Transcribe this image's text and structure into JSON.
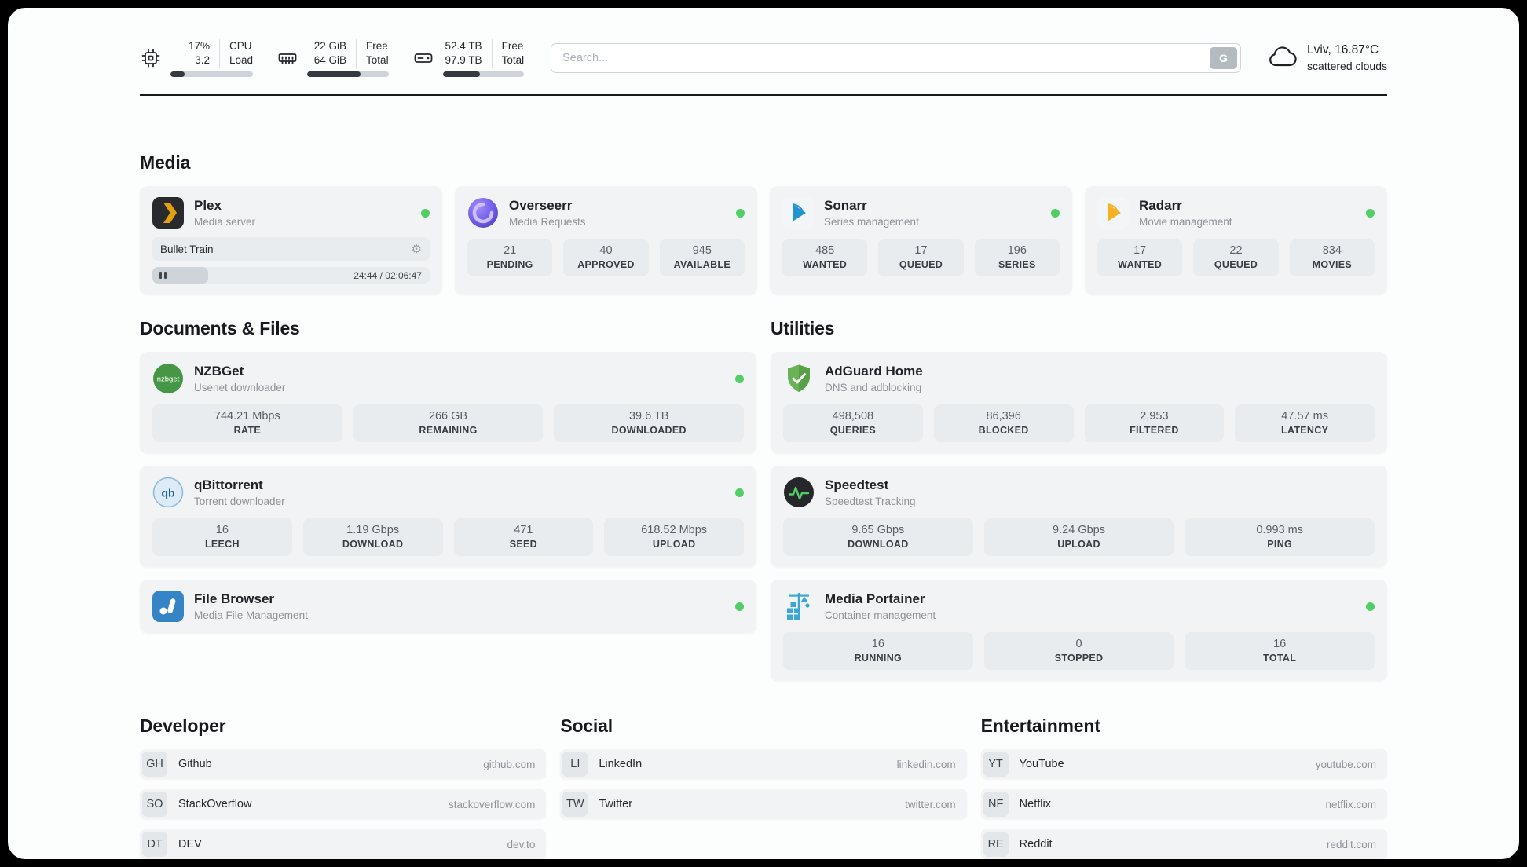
{
  "header": {
    "cpu": {
      "value1": "17%",
      "value2": "3.2",
      "label1": "CPU",
      "label2": "Load",
      "bar_percent": 17
    },
    "ram": {
      "value1": "22 GiB",
      "value2": "64 GiB",
      "label1": "Free",
      "label2": "Total",
      "bar_percent": 66
    },
    "disk": {
      "value1": "52.4 TB",
      "value2": "97.9 TB",
      "label1": "Free",
      "label2": "Total",
      "bar_percent": 46
    },
    "search": {
      "placeholder": "Search...",
      "engine_button": "G"
    },
    "weather": {
      "location": "Lviv, 16.87°C",
      "condition": "scattered clouds"
    }
  },
  "sections": {
    "media": {
      "title": "Media",
      "apps": [
        {
          "name": "Plex",
          "description": "Media server",
          "player": {
            "track": "Bullet Train",
            "time": "24:44 / 02:06:47",
            "progress_percent": 20
          }
        },
        {
          "name": "Overseerr",
          "description": "Media Requests",
          "stats": [
            {
              "value": "21",
              "label": "PENDING"
            },
            {
              "value": "40",
              "label": "APPROVED"
            },
            {
              "value": "945",
              "label": "AVAILABLE"
            }
          ]
        },
        {
          "name": "Sonarr",
          "description": "Series management",
          "stats": [
            {
              "value": "485",
              "label": "WANTED"
            },
            {
              "value": "17",
              "label": "QUEUED"
            },
            {
              "value": "196",
              "label": "SERIES"
            }
          ]
        },
        {
          "name": "Radarr",
          "description": "Movie management",
          "stats": [
            {
              "value": "17",
              "label": "WANTED"
            },
            {
              "value": "22",
              "label": "QUEUED"
            },
            {
              "value": "834",
              "label": "MOVIES"
            }
          ]
        }
      ]
    },
    "documents": {
      "title": "Documents & Files",
      "apps": [
        {
          "name": "NZBGet",
          "description": "Usenet downloader",
          "icon_text": "nzbget",
          "stats": [
            {
              "value": "744.21 Mbps",
              "label": "RATE"
            },
            {
              "value": "266 GB",
              "label": "REMAINING"
            },
            {
              "value": "39.6 TB",
              "label": "DOWNLOADED"
            }
          ]
        },
        {
          "name": "qBittorrent",
          "description": "Torrent downloader",
          "icon_text": "qb",
          "stats": [
            {
              "value": "16",
              "label": "LEECH"
            },
            {
              "value": "1.19 Gbps",
              "label": "DOWNLOAD"
            },
            {
              "value": "471",
              "label": "SEED"
            },
            {
              "value": "618.52 Mbps",
              "label": "UPLOAD"
            }
          ]
        },
        {
          "name": "File Browser",
          "description": "Media File Management"
        }
      ]
    },
    "utilities": {
      "title": "Utilities",
      "apps": [
        {
          "name": "AdGuard Home",
          "description": "DNS and adblocking",
          "stats": [
            {
              "value": "498,508",
              "label": "QUERIES"
            },
            {
              "value": "86,396",
              "label": "BLOCKED"
            },
            {
              "value": "2,953",
              "label": "FILTERED"
            },
            {
              "value": "47.57 ms",
              "label": "LATENCY"
            }
          ]
        },
        {
          "name": "Speedtest",
          "description": "Speedtest Tracking",
          "stats": [
            {
              "value": "9.65 Gbps",
              "label": "DOWNLOAD"
            },
            {
              "value": "9.24 Gbps",
              "label": "UPLOAD"
            },
            {
              "value": "0.993 ms",
              "label": "PING"
            }
          ]
        },
        {
          "name": "Media Portainer",
          "description": "Container management",
          "stats": [
            {
              "value": "16",
              "label": "RUNNING"
            },
            {
              "value": "0",
              "label": "STOPPED"
            },
            {
              "value": "16",
              "label": "TOTAL"
            }
          ]
        }
      ]
    },
    "developer": {
      "title": "Developer",
      "bookmarks": [
        {
          "abbr": "GH",
          "name": "Github",
          "url": "github.com"
        },
        {
          "abbr": "SO",
          "name": "StackOverflow",
          "url": "stackoverflow.com"
        },
        {
          "abbr": "DT",
          "name": "DEV",
          "url": "dev.to"
        }
      ]
    },
    "social": {
      "title": "Social",
      "bookmarks": [
        {
          "abbr": "LI",
          "name": "LinkedIn",
          "url": "linkedin.com"
        },
        {
          "abbr": "TW",
          "name": "Twitter",
          "url": "twitter.com"
        }
      ]
    },
    "entertainment": {
      "title": "Entertainment",
      "bookmarks": [
        {
          "abbr": "YT",
          "name": "YouTube",
          "url": "youtube.com"
        },
        {
          "abbr": "NF",
          "name": "Netflix",
          "url": "netflix.com"
        },
        {
          "abbr": "RE",
          "name": "Reddit",
          "url": "reddit.com"
        }
      ]
    }
  },
  "colors": {
    "status_online": "#51cf66",
    "accent_dark": "#343a40"
  }
}
